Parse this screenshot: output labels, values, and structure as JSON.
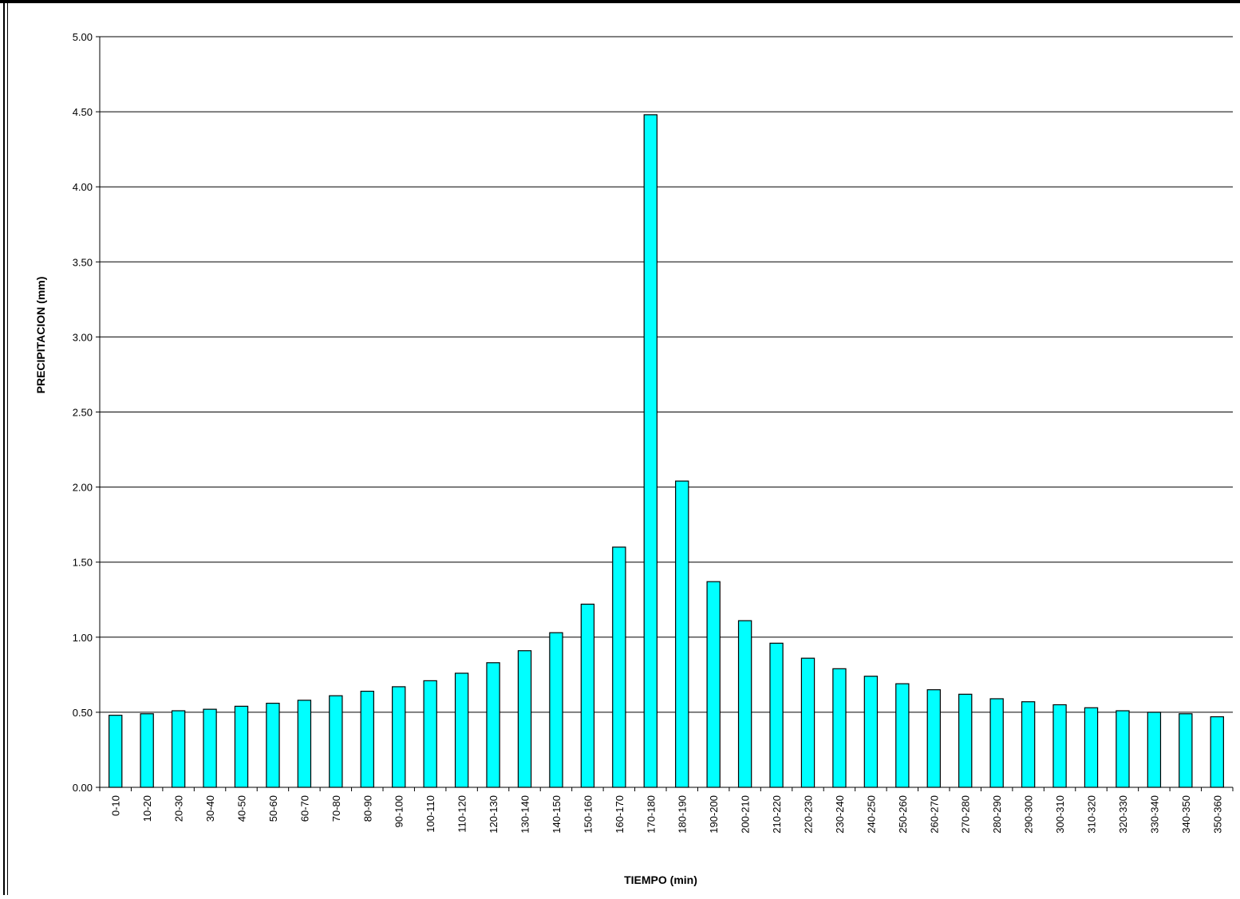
{
  "chart_data": {
    "type": "bar",
    "title": "",
    "xlabel": "TIEMPO (min)",
    "ylabel": "PRECIPITACION (mm)",
    "ylim": [
      0,
      5
    ],
    "yticks": [
      "0.00",
      "0.50",
      "1.00",
      "1.50",
      "2.00",
      "2.50",
      "3.00",
      "3.50",
      "4.00",
      "4.50",
      "5.00"
    ],
    "grid": true,
    "legend": "none",
    "bar_color": "#00FFFF",
    "bar_edge_color": "#000000",
    "categories": [
      "0-10",
      "10-20",
      "20-30",
      "30-40",
      "40-50",
      "50-60",
      "60-70",
      "70-80",
      "80-90",
      "90-100",
      "100-110",
      "110-120",
      "120-130",
      "130-140",
      "140-150",
      "150-160",
      "160-170",
      "170-180",
      "180-190",
      "190-200",
      "200-210",
      "210-220",
      "220-230",
      "230-240",
      "240-250",
      "250-260",
      "260-270",
      "270-280",
      "280-290",
      "290-300",
      "300-310",
      "310-320",
      "320-330",
      "330-340",
      "340-350",
      "350-360"
    ],
    "values": [
      0.48,
      0.49,
      0.51,
      0.52,
      0.54,
      0.56,
      0.58,
      0.61,
      0.64,
      0.67,
      0.71,
      0.76,
      0.83,
      0.91,
      1.03,
      1.22,
      1.6,
      4.48,
      2.04,
      1.37,
      1.11,
      0.96,
      0.86,
      0.79,
      0.74,
      0.69,
      0.65,
      0.62,
      0.59,
      0.57,
      0.55,
      0.53,
      0.51,
      0.5,
      0.49,
      0.47
    ]
  }
}
